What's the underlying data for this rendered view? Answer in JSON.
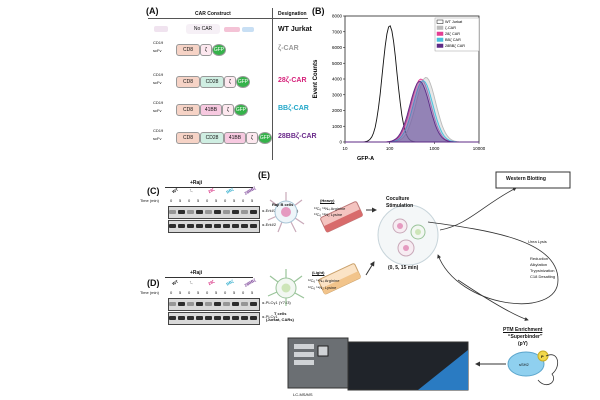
{
  "panels": {
    "A": {
      "label": "(A)",
      "header_construct": "CAR Construct",
      "header_designation": "Designation",
      "no_car": "No CAR",
      "scfv_prefix": [
        "CD19",
        "scFv"
      ],
      "rows": [
        {
          "designation": "WT Jurkat",
          "color": "#111111",
          "segments": []
        },
        {
          "designation": "ζ-CAR",
          "color": "#9a9a9a",
          "segments": [
            "CD8",
            "ζ",
            "GFP"
          ]
        },
        {
          "designation": "28ζ-CAR",
          "color": "#d6217a",
          "segments": [
            "CD8",
            "CD28",
            "ζ",
            "GFP"
          ]
        },
        {
          "designation": "BBζ-CAR",
          "color": "#22a7c9",
          "segments": [
            "CD8",
            "41BB",
            "ζ",
            "GFP"
          ]
        },
        {
          "designation": "28BBζ-CAR",
          "color": "#6a2a8a",
          "segments": [
            "CD8",
            "CD28",
            "41BB",
            "ζ",
            "GFP"
          ]
        }
      ]
    },
    "B": {
      "label": "(B)"
    },
    "C": {
      "label": "(C)",
      "raji": "+Raji",
      "time_label": "Time (min)",
      "lanes": [
        "0",
        "5",
        "0",
        "5",
        "0",
        "5",
        "0",
        "5",
        "0",
        "5"
      ],
      "groups": [
        "WT",
        "ζ",
        "28ζ",
        "BBζ",
        "28BBζ"
      ],
      "group_colors": [
        "#111111",
        "#9a9a9a",
        "#d6217a",
        "#22a7c9",
        "#6a2a8a"
      ],
      "row_labels": [
        "α-ErkI/2 (T202Y204)",
        "α-ErkI/2"
      ]
    },
    "D": {
      "label": "(D)",
      "raji": "+Raji",
      "time_label": "Time (min)",
      "lanes": [
        "0",
        "5",
        "0",
        "5",
        "0",
        "5",
        "0",
        "5",
        "0",
        "5"
      ],
      "groups": [
        "WT",
        "ζ",
        "28ζ",
        "BBζ",
        "28BBζ"
      ],
      "group_colors": [
        "#111111",
        "#9a9a9a",
        "#d6217a",
        "#22a7c9",
        "#6a2a8a"
      ],
      "row_labels": [
        "α-PLCγ1 (Y783)",
        "α-PLCγ1"
      ]
    },
    "E": {
      "label": "(E)",
      "raji_cells": "Raji B cells",
      "heavy": "(Heavy)",
      "heavy_arg": "¹³C₆ ¹⁵N₄ Arginine",
      "heavy_lys": "¹³C₆ ¹⁵N₂ Lysine",
      "light": "(Light)",
      "light_arg": "¹²C₆ ¹⁴N₄ Arginine",
      "light_lys": "¹²C₆ ¹⁴N₂ Lysine",
      "tcells": "T cells",
      "tcells_sub": "(Jurkat, CARs)",
      "coculture": "Coculture",
      "stimulation": "Stimulation",
      "times": "(0, 5, 15 min)",
      "western": "Western Blotting",
      "urea": "Urea Lysis",
      "steps": [
        "Reduction",
        "Alkylation",
        "Trypsinization",
        "C18 Desalting"
      ],
      "ptm": "PTM Enrichment",
      "superbinder": "“Superbinder”",
      "py": "(pY)",
      "sh2": "sSH2",
      "p": "P",
      "lcms": "LC-MS/MS"
    }
  },
  "chart_data": {
    "type": "area",
    "xlabel": "GFP-A",
    "ylabel": "Event Counts",
    "xscale": "log",
    "xlim": [
      10,
      10000
    ],
    "ylim": [
      0,
      8000
    ],
    "xticks": [
      "10",
      "100",
      "1000",
      "10000"
    ],
    "yticks": [
      "0",
      "1000",
      "2000",
      "3000",
      "4000",
      "5000",
      "6000",
      "7000",
      "8000"
    ],
    "legend_position": "top-right",
    "series": [
      {
        "name": "WT Jurkat",
        "color": "#111111",
        "peak_x": 100,
        "peak_y": 7400,
        "width": 0.16
      },
      {
        "name": "ζ-CAR",
        "color": "#bbbbbb",
        "peak_x": 650,
        "peak_y": 4100,
        "width": 0.22
      },
      {
        "name": "28ζ CAR",
        "color": "#e43f93",
        "peak_x": 500,
        "peak_y": 4000,
        "width": 0.22
      },
      {
        "name": "BBζ CAR",
        "color": "#49c1de",
        "peak_x": 560,
        "peak_y": 3900,
        "width": 0.22
      },
      {
        "name": "28BBζ CAR",
        "color": "#5e2a86",
        "peak_x": 470,
        "peak_y": 3850,
        "width": 0.22
      }
    ]
  }
}
